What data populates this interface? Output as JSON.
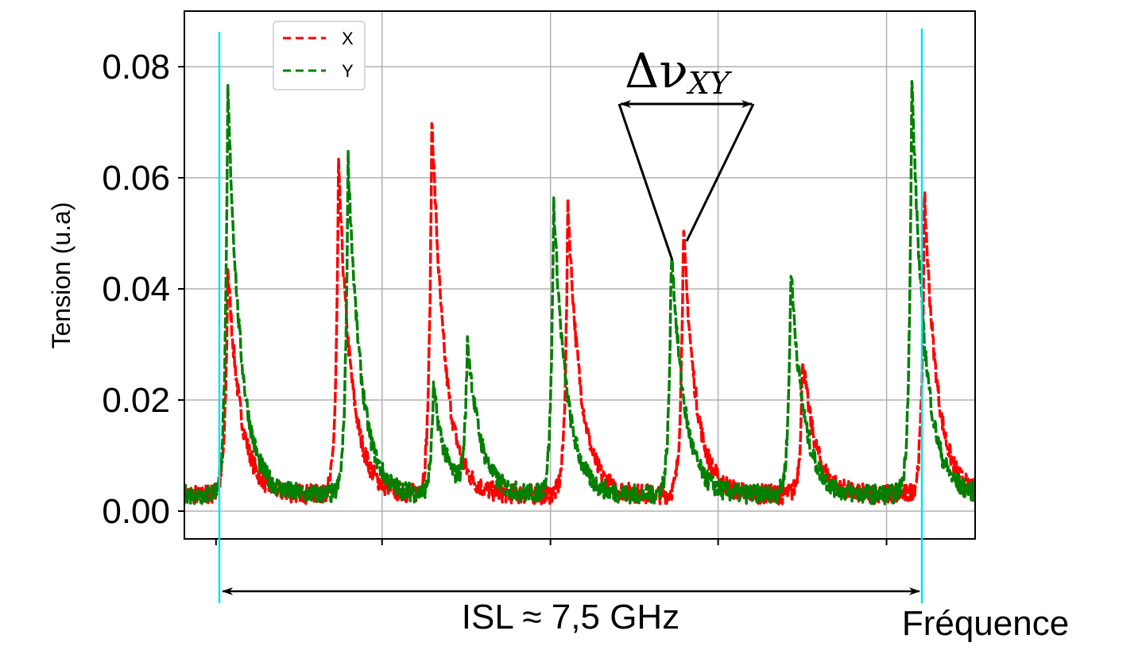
{
  "chart_data": {
    "type": "line",
    "title": "",
    "xlabel": "Fréquence",
    "ylabel": "Tension (u.a)",
    "xlim": [
      0,
      100
    ],
    "ylim": [
      -0.005,
      0.09
    ],
    "yticks": [
      0.0,
      0.02,
      0.04,
      0.06,
      0.08
    ],
    "ytick_labels": [
      "0.00",
      "0.02",
      "0.04",
      "0.06",
      "0.08"
    ],
    "xticks": [
      25,
      46.3,
      67.5,
      88.8
    ],
    "grid": true,
    "legend_position": "top-left",
    "baseline": 0.003,
    "series": [
      {
        "name": "X",
        "color": "#ff0000",
        "style": "dashed",
        "peaks": [
          {
            "x": 5.5,
            "y": 0.041
          },
          {
            "x": 19.5,
            "y": 0.059
          },
          {
            "x": 31.3,
            "y": 0.069
          },
          {
            "x": 48.5,
            "y": 0.053
          },
          {
            "x": 63.1,
            "y": 0.048
          },
          {
            "x": 78.2,
            "y": 0.025
          },
          {
            "x": 93.6,
            "y": 0.054
          }
        ]
      },
      {
        "name": "Y",
        "color": "#008000",
        "style": "dashed",
        "peaks": [
          {
            "x": 5.5,
            "y": 0.073
          },
          {
            "x": 20.7,
            "y": 0.061
          },
          {
            "x": 31.5,
            "y": 0.019
          },
          {
            "x": 35.8,
            "y": 0.027
          },
          {
            "x": 46.7,
            "y": 0.053
          },
          {
            "x": 61.6,
            "y": 0.045
          },
          {
            "x": 76.7,
            "y": 0.041
          },
          {
            "x": 92.0,
            "y": 0.075
          }
        ]
      }
    ],
    "annotations": {
      "delta_symbol": "Δν",
      "delta_subscript": "XY",
      "isl_label": "ISL ≈ 7,5 GHz",
      "color_marker": "#00e5ee"
    }
  }
}
